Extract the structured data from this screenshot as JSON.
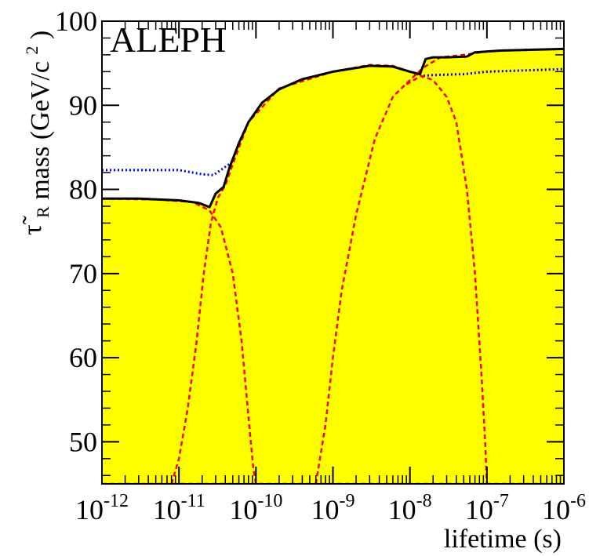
{
  "chart_data": {
    "type": "area",
    "title": "",
    "experiment_label": "ALEPH",
    "xlabel": "lifetime (s)",
    "ylabel": {
      "main": "mass (GeV/c",
      "symbol": "τ̃",
      "subscript": "R",
      "superscript": "2",
      "close": ")"
    },
    "x_scale": "log",
    "xlim": [
      1e-12,
      1e-06
    ],
    "ylim": [
      45,
      100
    ],
    "x_ticks": [
      {
        "base": "10",
        "exp": "-12"
      },
      {
        "base": "10",
        "exp": "-11"
      },
      {
        "base": "10",
        "exp": "-10"
      },
      {
        "base": "10",
        "exp": "-9"
      },
      {
        "base": "10",
        "exp": "-8"
      },
      {
        "base": "10",
        "exp": "-7"
      },
      {
        "base": "10",
        "exp": "-6"
      }
    ],
    "y_ticks": [
      "50",
      "60",
      "70",
      "80",
      "90",
      "100"
    ],
    "grid": false,
    "colors": {
      "excluded_fill": "#ffff00",
      "combined": "#000000",
      "expected": "#0000ff",
      "individual": "#ff0000"
    },
    "series": [
      {
        "style": "filled-solid",
        "points": [
          [
            1e-12,
            78.9
          ],
          [
            3e-12,
            78.9
          ],
          [
            1e-11,
            78.7
          ],
          [
            1.8e-11,
            78.4
          ],
          [
            2.5e-11,
            77.9
          ],
          [
            3e-11,
            79.5
          ],
          [
            3.8e-11,
            80.3
          ],
          [
            4.5e-11,
            82.5
          ],
          [
            6e-11,
            85.5
          ],
          [
            8e-11,
            88
          ],
          [
            1.2e-10,
            90.3
          ],
          [
            2e-10,
            91.9
          ],
          [
            4e-10,
            93.1
          ],
          [
            1e-09,
            94
          ],
          [
            3e-09,
            94.7
          ],
          [
            6e-09,
            94.6
          ],
          [
            1e-08,
            94
          ],
          [
            1.35e-08,
            93.7
          ],
          [
            1.6e-08,
            95.5
          ],
          [
            2e-08,
            95.7
          ],
          [
            3e-08,
            95.7
          ],
          [
            5.5e-08,
            95.8
          ],
          [
            7e-08,
            96.3
          ],
          [
            1.5e-07,
            96.5
          ],
          [
            1e-06,
            96.7
          ]
        ]
      },
      {
        "style": "dotted",
        "points": [
          [
            1e-12,
            82.3
          ],
          [
            1e-11,
            82.3
          ],
          [
            2e-11,
            81.8
          ],
          [
            2.8e-11,
            81.7
          ],
          [
            4.5e-11,
            83
          ]
        ]
      },
      {
        "style": "dotted",
        "points": [
          [
            1.5e-08,
            93.5
          ],
          [
            2e-08,
            93.6
          ],
          [
            5e-08,
            93.7
          ],
          [
            1e-07,
            94
          ],
          [
            1e-06,
            94.3
          ]
        ]
      },
      {
        "style": "dashed",
        "points": [
          [
            1e-12,
            78.9
          ],
          [
            5e-12,
            78.8
          ],
          [
            1.5e-11,
            78.5
          ],
          [
            2.5e-11,
            77.5
          ],
          [
            3.5e-11,
            75.5
          ],
          [
            5e-11,
            70
          ],
          [
            6.5e-11,
            62
          ],
          [
            8e-11,
            53
          ],
          [
            9.2e-11,
            47
          ],
          [
            1e-10,
            45
          ]
        ]
      },
      {
        "style": "dashed",
        "points": [
          [
            8e-12,
            45
          ],
          [
            1e-11,
            48
          ],
          [
            1.3e-11,
            54
          ],
          [
            1.7e-11,
            62
          ],
          [
            2.1e-11,
            70
          ],
          [
            2.6e-11,
            76
          ],
          [
            3.2e-11,
            79
          ],
          [
            4e-11,
            80.5
          ],
          [
            5e-11,
            83
          ],
          [
            8e-11,
            88
          ],
          [
            2e-10,
            92
          ],
          [
            1e-09,
            94
          ],
          [
            3e-09,
            94.8
          ],
          [
            6e-09,
            94.7
          ],
          [
            1e-08,
            94
          ],
          [
            1.4e-08,
            93.5
          ],
          [
            1.5e-08,
            93.3
          ]
        ]
      },
      {
        "style": "dashed",
        "points": [
          [
            6e-10,
            45
          ],
          [
            8e-10,
            52
          ],
          [
            1e-09,
            60
          ],
          [
            1.3e-09,
            68
          ],
          [
            2e-09,
            77
          ],
          [
            3.5e-09,
            86
          ],
          [
            6e-09,
            91
          ],
          [
            1e-08,
            93
          ],
          [
            1.5e-08,
            94.5
          ],
          [
            2.5e-08,
            95.7
          ],
          [
            5e-08,
            96
          ],
          [
            1e-07,
            96.4
          ],
          [
            3e-07,
            96.6
          ],
          [
            1e-06,
            96.7
          ]
        ]
      },
      {
        "style": "dashed",
        "points": [
          [
            9e-09,
            92.5
          ],
          [
            1.4e-08,
            93.5
          ],
          [
            2e-08,
            93
          ],
          [
            3e-08,
            91
          ],
          [
            4e-08,
            88
          ],
          [
            5.5e-08,
            80
          ],
          [
            7e-08,
            70
          ],
          [
            8.5e-08,
            58
          ],
          [
            9.5e-08,
            50
          ],
          [
            1e-07,
            45
          ]
        ]
      },
      {
        "style": "dashed",
        "points": [
          [
            1e-12,
            45
          ],
          [
            1e-06,
            45
          ]
        ]
      }
    ]
  }
}
